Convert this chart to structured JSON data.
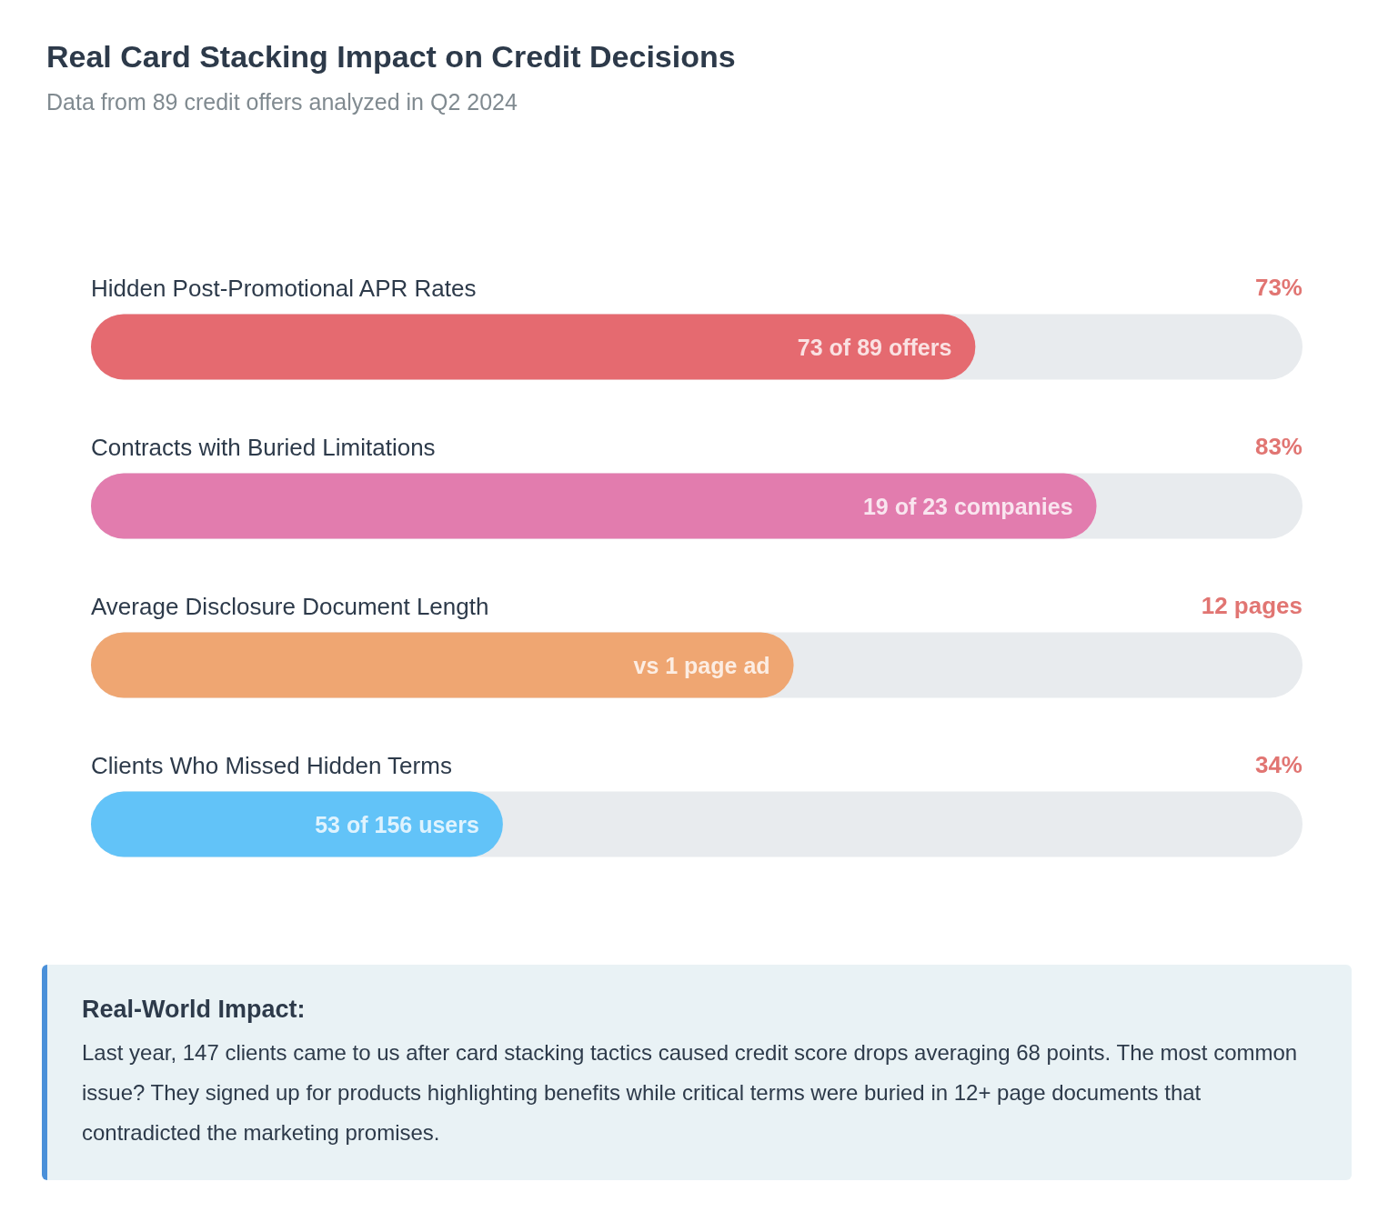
{
  "chart_data": {
    "type": "bar",
    "orientation": "horizontal",
    "title": "Real Card Stacking Impact on Credit Decisions",
    "subtitle": "Data from 89 credit offers analyzed in Q2 2024",
    "categories": [
      "Hidden Post-Promotional APR Rates",
      "Contracts with Buried Limitations",
      "Average Disclosure Document Length",
      "Clients Who Missed Hidden Terms"
    ],
    "values": [
      73,
      83,
      58,
      34
    ],
    "colors": [
      "#e56a70",
      "#e27cae",
      "#efa672",
      "#62c3f8"
    ],
    "value_labels": [
      "73%",
      "83%",
      null,
      "34%"
    ],
    "xlim": [
      0,
      100
    ],
    "annotations": [
      {
        "text": "73 of 89 offers",
        "x": 73,
        "y": "Hidden Post-Promotional APR Rates"
      },
      {
        "text": "19 of 23 companies",
        "x": 83,
        "y": "Contracts with Buried Limitations"
      },
      {
        "text": "vs 1 page ad",
        "x": 58,
        "y": "Average Disclosure Document Length"
      },
      {
        "text": "53 of 156 users",
        "x": 34,
        "y": "Clients Who Missed Hidden Terms"
      },
      "12 pages",
      "Real-World Impact:",
      "Last year, 147 clients came to us after card stacking tactics caused credit score drops averaging 68 points. The most common issue? They signed up for products highlighting benefits while critical terms were buried in 12+ page documents that contradicted the marketing promises."
    ]
  }
}
